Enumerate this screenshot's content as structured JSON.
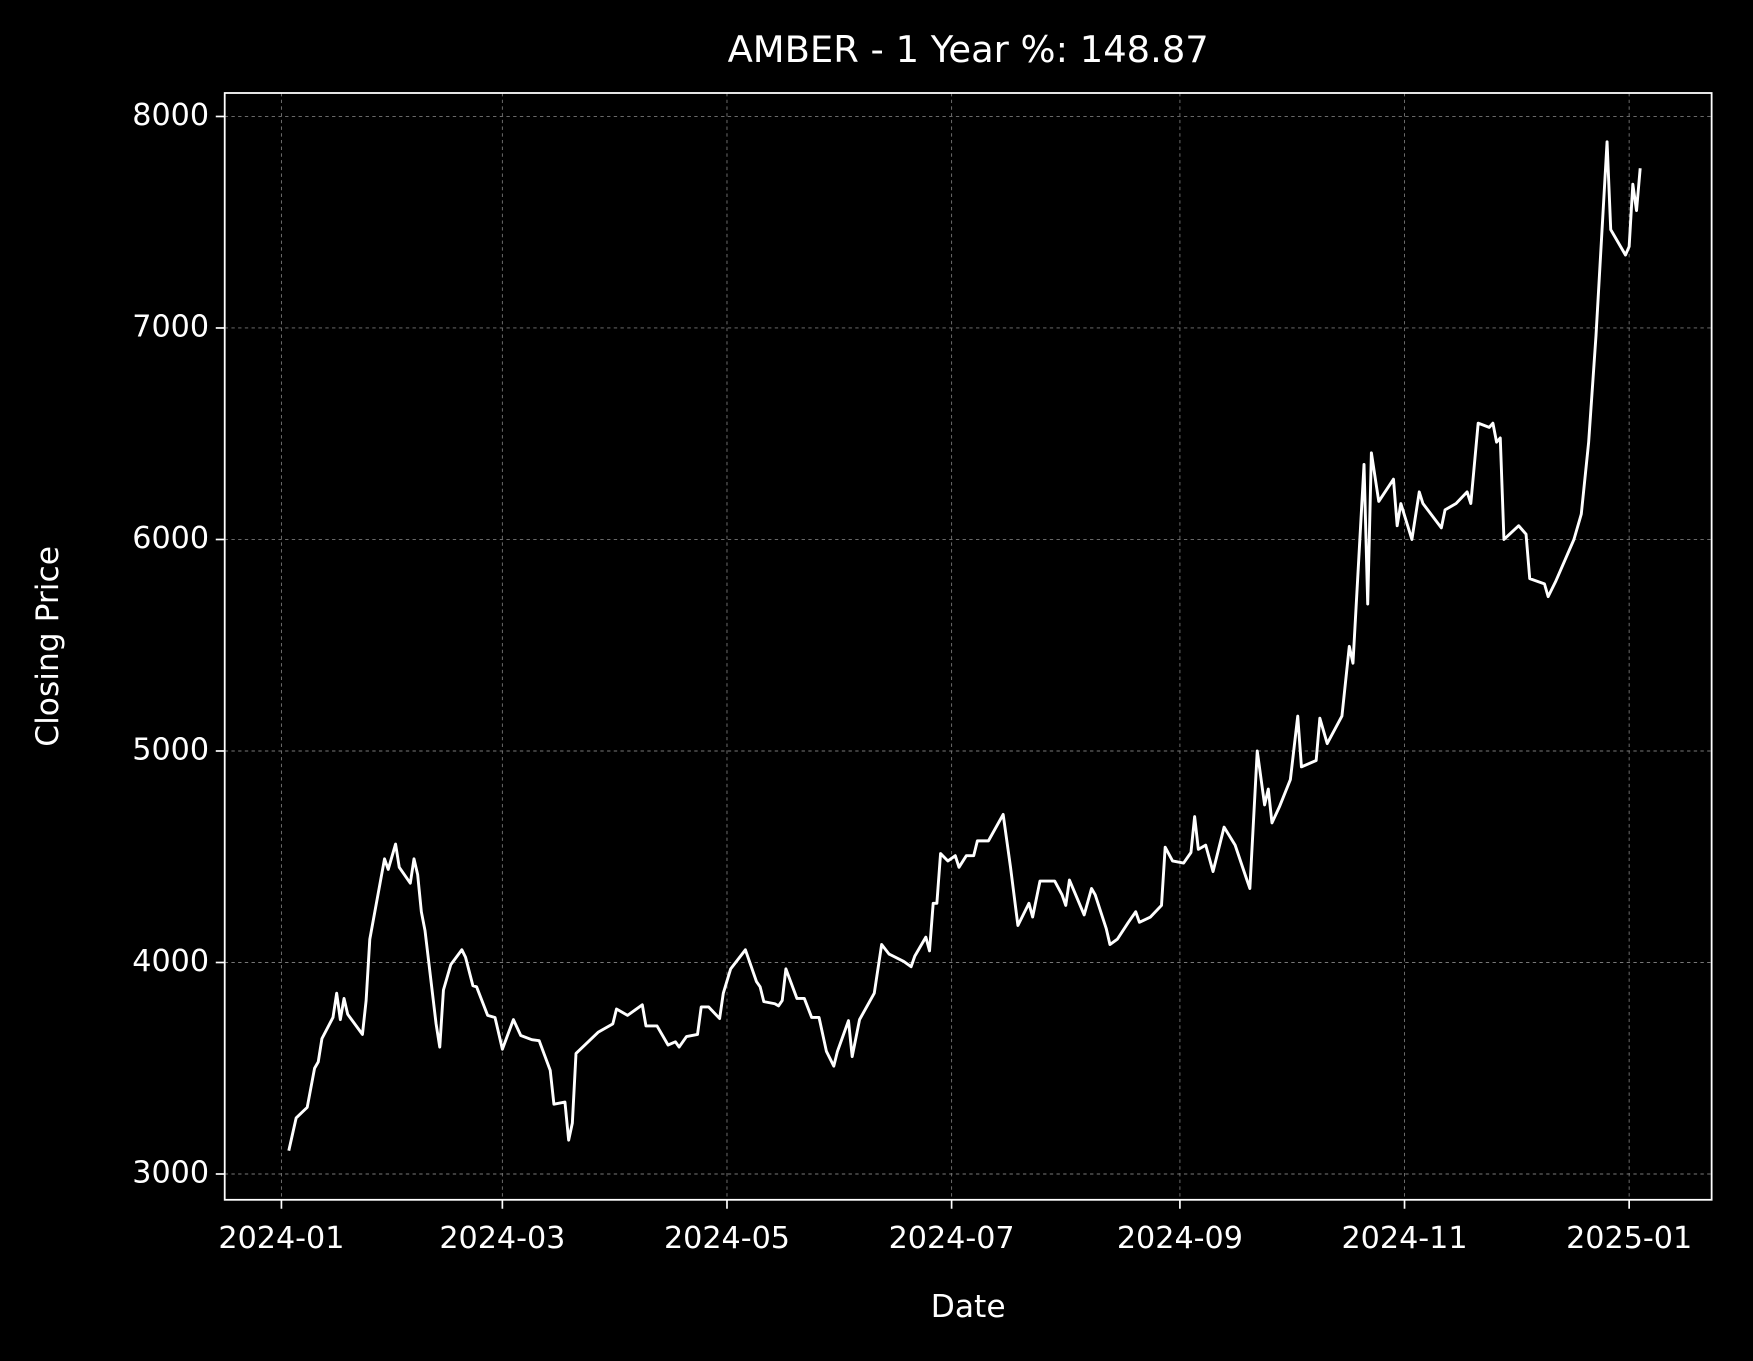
{
  "chart_data": {
    "type": "line",
    "title": "AMBER - 1 Year %: 148.87",
    "x_label": "Date",
    "y_label": "Closing Price",
    "x": [
      2,
      4,
      7,
      9,
      10,
      11,
      14,
      15,
      16,
      17,
      18,
      22,
      23,
      24,
      28,
      29,
      31,
      32,
      35,
      36,
      37,
      38,
      39,
      42,
      43,
      44,
      46,
      49,
      50,
      52,
      53,
      56,
      58,
      60,
      63,
      65,
      68,
      70,
      73,
      74,
      77,
      78,
      79,
      80,
      86,
      90,
      91,
      94,
      98,
      99,
      102,
      105,
      107,
      108,
      110,
      113,
      114,
      116,
      119,
      120,
      122,
      126,
      129,
      130,
      131,
      134,
      135,
      136,
      137,
      140,
      142,
      144,
      146,
      148,
      150,
      151,
      154,
      155,
      157,
      161,
      163,
      165,
      169,
      171,
      172,
      175,
      176,
      177,
      178,
      179,
      181,
      183,
      184,
      186,
      188,
      189,
      192,
      196,
      198,
      200,
      203,
      204,
      206,
      210,
      212,
      213,
      214,
      218,
      220,
      221,
      224,
      225,
      227,
      230,
      232,
      233,
      236,
      239,
      240,
      242,
      245,
      247,
      248,
      249,
      251,
      253,
      256,
      259,
      262,
      263,
      265,
      267,
      268,
      269,
      271,
      274,
      276,
      277,
      281,
      282,
      284,
      288,
      290,
      291,
      294,
      295,
      296,
      298,
      302,
      303,
      304,
      307,
      309,
      310,
      315,
      316,
      319,
      322,
      323,
      325,
      328,
      329,
      330,
      331,
      332,
      336,
      338,
      339,
      343,
      344,
      346,
      351,
      353,
      355,
      357,
      360,
      361,
      365,
      366,
      367,
      368,
      369
    ],
    "values": [
      3110,
      3265,
      3315,
      3500,
      3530,
      3640,
      3740,
      3855,
      3730,
      3830,
      3755,
      3660,
      3820,
      4110,
      4490,
      4440,
      4560,
      4450,
      4375,
      4490,
      4415,
      4240,
      4150,
      3710,
      3600,
      3870,
      3990,
      4060,
      4025,
      3890,
      3885,
      3750,
      3740,
      3590,
      3730,
      3655,
      3635,
      3630,
      3490,
      3330,
      3340,
      3160,
      3240,
      3570,
      3670,
      3710,
      3780,
      3750,
      3800,
      3700,
      3700,
      3610,
      3625,
      3600,
      3650,
      3660,
      3790,
      3790,
      3735,
      3855,
      3970,
      4060,
      3910,
      3885,
      3815,
      3805,
      3795,
      3820,
      3970,
      3830,
      3830,
      3740,
      3740,
      3580,
      3510,
      3580,
      3725,
      3555,
      3730,
      3855,
      4085,
      4040,
      4005,
      3980,
      4030,
      4120,
      4055,
      4280,
      4280,
      4515,
      4480,
      4505,
      4450,
      4505,
      4505,
      4575,
      4575,
      4700,
      4450,
      4175,
      4280,
      4215,
      4385,
      4385,
      4320,
      4270,
      4390,
      4225,
      4350,
      4320,
      4160,
      4085,
      4110,
      4190,
      4240,
      4190,
      4215,
      4270,
      4545,
      4480,
      4470,
      4520,
      4690,
      4535,
      4555,
      4430,
      4640,
      4555,
      4400,
      4350,
      5000,
      4745,
      4820,
      4660,
      4735,
      4865,
      5165,
      4925,
      4955,
      5155,
      5035,
      5165,
      5495,
      5415,
      6355,
      5695,
      6410,
      6180,
      6285,
      6065,
      6170,
      6000,
      6225,
      6170,
      6055,
      6140,
      6170,
      6225,
      6170,
      6550,
      6530,
      6550,
      6460,
      6480,
      6000,
      6065,
      6025,
      5815,
      5790,
      5730,
      5800,
      6000,
      6120,
      6460,
      6965,
      7880,
      7465,
      7345,
      7385,
      7680,
      7555,
      7755
    ],
    "color": "#ffffff",
    "xlim": [
      -15.4,
      388.4
    ],
    "xticks": [
      {
        "value": 0,
        "label": "2024-01"
      },
      {
        "value": 60,
        "label": "2024-03"
      },
      {
        "value": 121,
        "label": "2024-05"
      },
      {
        "value": 182,
        "label": "2024-07"
      },
      {
        "value": 244,
        "label": "2024-09"
      },
      {
        "value": 305,
        "label": "2024-11"
      },
      {
        "value": 366,
        "label": "2025-01"
      }
    ],
    "ylim": [
      2878,
      8111
    ],
    "yticks": [
      3000,
      4000,
      5000,
      6000,
      7000,
      8000
    ],
    "grid": true
  }
}
